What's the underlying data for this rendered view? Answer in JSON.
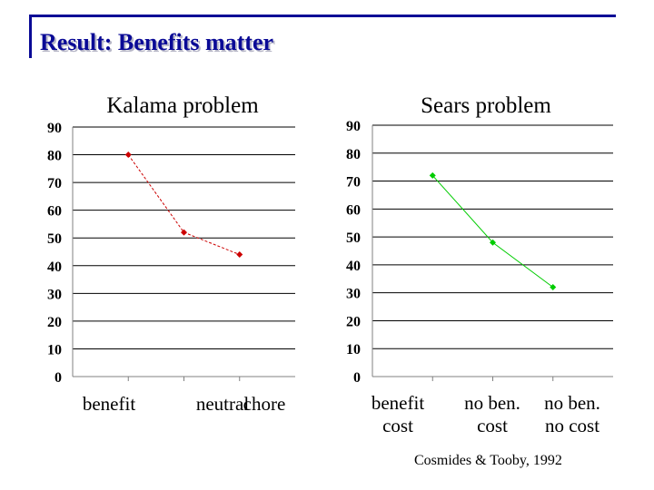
{
  "slide": {
    "title": "Result: Benefits matter",
    "citation": "Cosmides & Tooby, 1992",
    "accent_color": "#0a0a96"
  },
  "chart_data": [
    {
      "type": "line",
      "title": "Kalama problem",
      "categories": [
        "benefit",
        "neutral",
        "chore"
      ],
      "series": [
        {
          "values": [
            80,
            52,
            44
          ],
          "color": "#cc0000"
        }
      ],
      "ylim": [
        0,
        90
      ],
      "yticks": [
        0,
        10,
        20,
        30,
        40,
        50,
        60,
        70,
        80,
        90
      ],
      "grid": true,
      "legend": "none"
    },
    {
      "type": "line",
      "title": "Sears problem",
      "categories": [
        {
          "line1": "benefit",
          "line2": "cost"
        },
        {
          "line1": "no ben.",
          "line2": "cost"
        },
        {
          "line1": "no ben.",
          "line2": "no cost"
        }
      ],
      "series": [
        {
          "values": [
            72,
            48,
            32
          ],
          "color": "#00cc00"
        }
      ],
      "ylim": [
        0,
        90
      ],
      "yticks": [
        0,
        10,
        20,
        30,
        40,
        50,
        60,
        70,
        80,
        90
      ],
      "grid": true,
      "legend": "none"
    }
  ]
}
